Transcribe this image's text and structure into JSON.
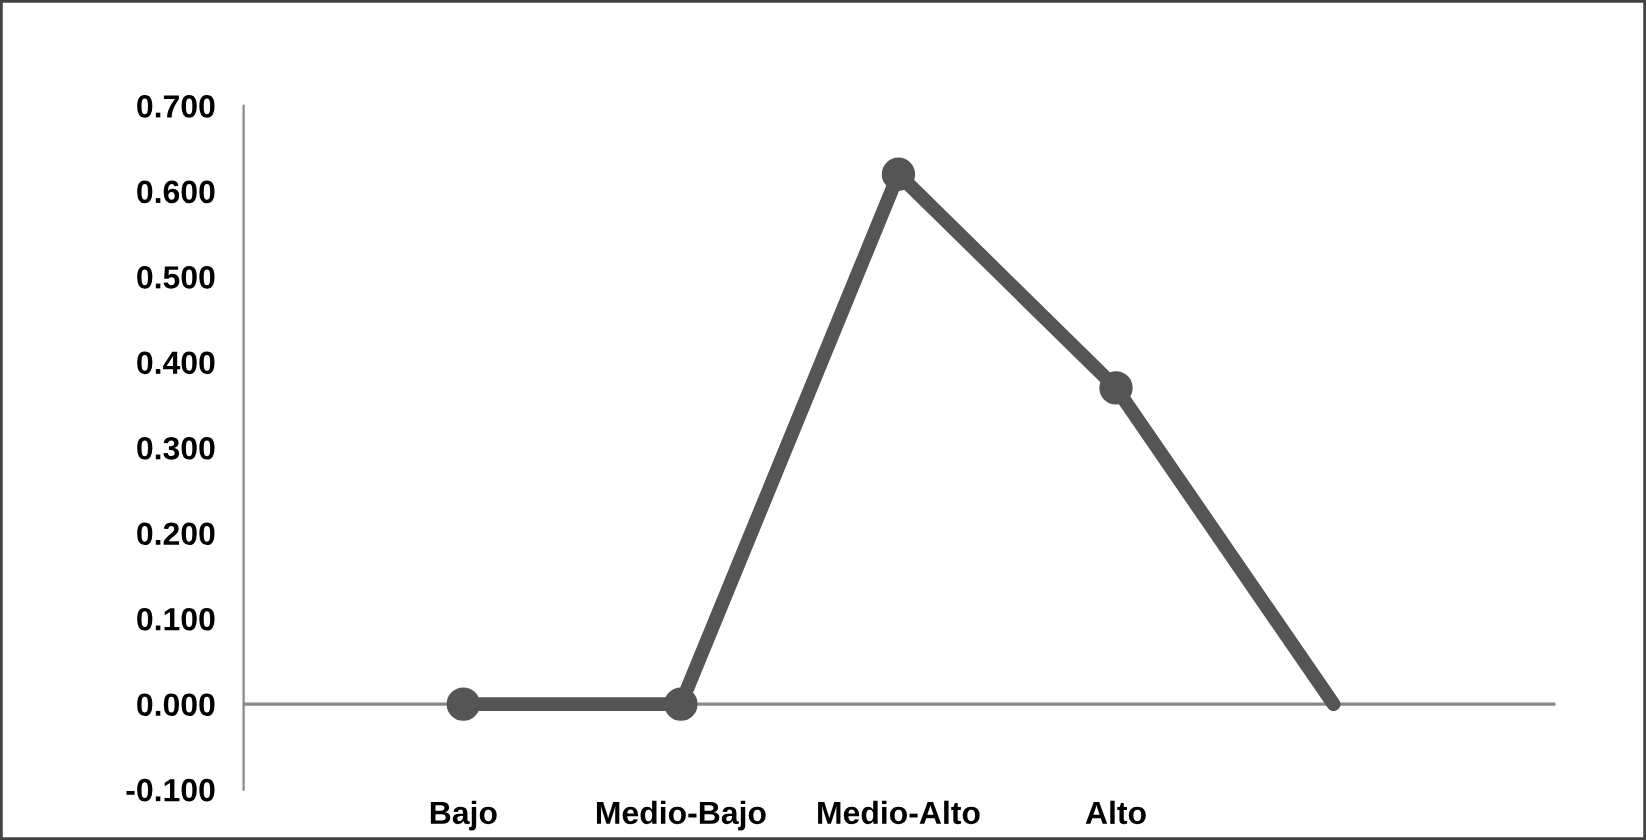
{
  "chart_data": {
    "type": "line",
    "categories": [
      "Bajo",
      "Medio-Bajo",
      "Medio-Alto",
      "Alto",
      null
    ],
    "series": [
      {
        "color": "#555555",
        "values": [
          0.0,
          0.0,
          0.62,
          0.37,
          0.0
        ]
      }
    ],
    "ylim": [
      -0.1,
      0.7
    ],
    "yticks": [
      {
        "value": -0.1,
        "label": "-0.100"
      },
      {
        "value": 0.0,
        "label": "0.000"
      },
      {
        "value": 0.1,
        "label": "0.100"
      },
      {
        "value": 0.2,
        "label": "0.200"
      },
      {
        "value": 0.3,
        "label": "0.300"
      },
      {
        "value": 0.4,
        "label": "0.400"
      },
      {
        "value": 0.5,
        "label": "0.500"
      },
      {
        "value": 0.6,
        "label": "0.600"
      },
      {
        "value": 0.7,
        "label": "0.700"
      }
    ],
    "ref_lines": [
      {
        "axis": "y",
        "value": 0.0,
        "color": "#888888"
      }
    ],
    "grid": false,
    "legend": false,
    "marker": "circle",
    "line_style": "solid"
  }
}
